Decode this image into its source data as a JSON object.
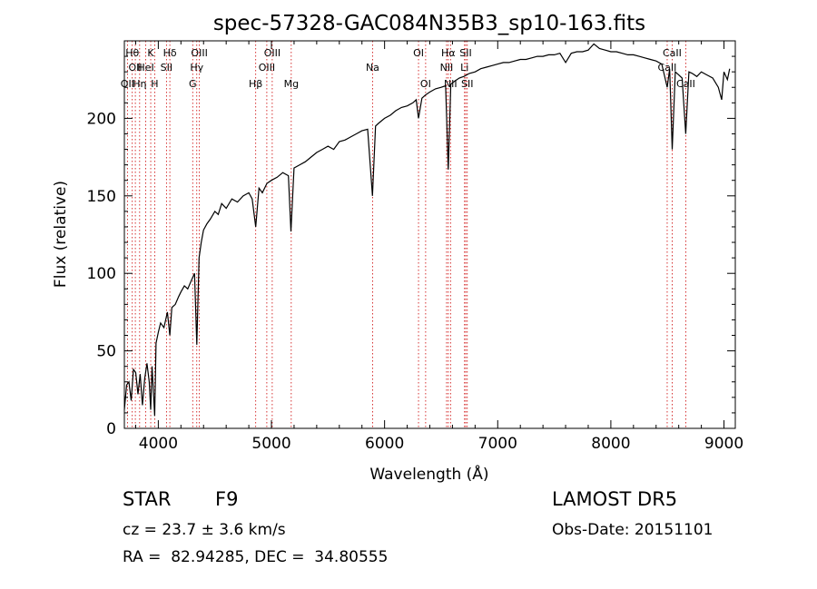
{
  "header": {
    "title": "spec-57328-GAC084N35B3_sp10-163.fits"
  },
  "info": {
    "object_class": "STAR",
    "subclass": "F9",
    "release": "LAMOST DR5",
    "redshift": "cz = 23.7 ± 3.6 km/s",
    "obs_date": "Obs-Date: 20151101",
    "coords": "RA =  82.94285, DEC =  34.80555"
  },
  "colors": {
    "axes": "#000000",
    "spectrum": "#000000",
    "line_marker": "#cc0000"
  },
  "chart_data": {
    "type": "line",
    "title": "spec-57328-GAC084N35B3_sp10-163.fits",
    "xlabel": "Wavelength (Å)",
    "ylabel": "Flux (relative)",
    "xlim": [
      3700,
      9100
    ],
    "ylim": [
      0,
      250
    ],
    "xticks": [
      4000,
      5000,
      6000,
      7000,
      8000,
      9000
    ],
    "yticks": [
      0,
      50,
      100,
      150,
      200
    ],
    "series": [
      {
        "values": [
          [
            3700,
            12
          ],
          [
            3720,
            28
          ],
          [
            3740,
            30
          ],
          [
            3760,
            18
          ],
          [
            3780,
            38
          ],
          [
            3800,
            36
          ],
          [
            3820,
            22
          ],
          [
            3840,
            35
          ],
          [
            3860,
            15
          ],
          [
            3880,
            32
          ],
          [
            3900,
            42
          ],
          [
            3920,
            30
          ],
          [
            3933,
            12
          ],
          [
            3945,
            40
          ],
          [
            3968,
            8
          ],
          [
            3980,
            55
          ],
          [
            4000,
            62
          ],
          [
            4020,
            68
          ],
          [
            4050,
            65
          ],
          [
            4080,
            75
          ],
          [
            4102,
            60
          ],
          [
            4120,
            78
          ],
          [
            4150,
            80
          ],
          [
            4180,
            85
          ],
          [
            4200,
            88
          ],
          [
            4230,
            92
          ],
          [
            4260,
            90
          ],
          [
            4290,
            95
          ],
          [
            4320,
            100
          ],
          [
            4340,
            54
          ],
          [
            4360,
            110
          ],
          [
            4380,
            120
          ],
          [
            4400,
            128
          ],
          [
            4430,
            132
          ],
          [
            4460,
            135
          ],
          [
            4500,
            140
          ],
          [
            4530,
            138
          ],
          [
            4560,
            145
          ],
          [
            4600,
            142
          ],
          [
            4650,
            148
          ],
          [
            4700,
            146
          ],
          [
            4750,
            150
          ],
          [
            4800,
            152
          ],
          [
            4830,
            148
          ],
          [
            4861,
            130
          ],
          [
            4890,
            155
          ],
          [
            4920,
            152
          ],
          [
            4960,
            158
          ],
          [
            5000,
            160
          ],
          [
            5050,
            162
          ],
          [
            5100,
            165
          ],
          [
            5150,
            163
          ],
          [
            5172,
            127
          ],
          [
            5200,
            168
          ],
          [
            5250,
            170
          ],
          [
            5300,
            172
          ],
          [
            5350,
            175
          ],
          [
            5400,
            178
          ],
          [
            5450,
            180
          ],
          [
            5500,
            182
          ],
          [
            5550,
            180
          ],
          [
            5600,
            185
          ],
          [
            5650,
            186
          ],
          [
            5700,
            188
          ],
          [
            5750,
            190
          ],
          [
            5800,
            192
          ],
          [
            5850,
            193
          ],
          [
            5893,
            150
          ],
          [
            5920,
            195
          ],
          [
            5950,
            197
          ],
          [
            6000,
            200
          ],
          [
            6050,
            202
          ],
          [
            6100,
            205
          ],
          [
            6150,
            207
          ],
          [
            6200,
            208
          ],
          [
            6250,
            210
          ],
          [
            6280,
            212
          ],
          [
            6300,
            200
          ],
          [
            6330,
            213
          ],
          [
            6360,
            215
          ],
          [
            6400,
            217
          ],
          [
            6450,
            219
          ],
          [
            6500,
            220
          ],
          [
            6540,
            221
          ],
          [
            6563,
            167
          ],
          [
            6585,
            222
          ],
          [
            6620,
            224
          ],
          [
            6660,
            226
          ],
          [
            6700,
            227
          ],
          [
            6750,
            229
          ],
          [
            6800,
            230
          ],
          [
            6850,
            232
          ],
          [
            6900,
            233
          ],
          [
            6950,
            234
          ],
          [
            7000,
            235
          ],
          [
            7050,
            236
          ],
          [
            7100,
            236
          ],
          [
            7150,
            237
          ],
          [
            7200,
            238
          ],
          [
            7250,
            238
          ],
          [
            7300,
            239
          ],
          [
            7350,
            240
          ],
          [
            7400,
            240
          ],
          [
            7450,
            241
          ],
          [
            7500,
            241
          ],
          [
            7550,
            242
          ],
          [
            7600,
            236
          ],
          [
            7650,
            242
          ],
          [
            7700,
            243
          ],
          [
            7750,
            243
          ],
          [
            7800,
            244
          ],
          [
            7850,
            248
          ],
          [
            7900,
            245
          ],
          [
            7950,
            244
          ],
          [
            8000,
            243
          ],
          [
            8050,
            243
          ],
          [
            8100,
            242
          ],
          [
            8150,
            241
          ],
          [
            8200,
            241
          ],
          [
            8250,
            240
          ],
          [
            8300,
            239
          ],
          [
            8350,
            238
          ],
          [
            8400,
            237
          ],
          [
            8450,
            235
          ],
          [
            8498,
            220
          ],
          [
            8520,
            232
          ],
          [
            8542,
            180
          ],
          [
            8570,
            230
          ],
          [
            8600,
            228
          ],
          [
            8630,
            226
          ],
          [
            8662,
            190
          ],
          [
            8690,
            230
          ],
          [
            8720,
            229
          ],
          [
            8760,
            227
          ],
          [
            8800,
            230
          ],
          [
            8850,
            228
          ],
          [
            8900,
            226
          ],
          [
            8950,
            220
          ],
          [
            8980,
            212
          ],
          [
            9000,
            230
          ],
          [
            9030,
            225
          ],
          [
            9050,
            232
          ]
        ]
      }
    ],
    "line_markers": [
      {
        "wave": 3727,
        "label": "OII",
        "row": 3
      },
      {
        "wave": 3770,
        "label": "Hθ",
        "row": 1
      },
      {
        "wave": 3797,
        "label": "OII",
        "row": 2
      },
      {
        "wave": 3835,
        "label": "Hη",
        "row": 3
      },
      {
        "wave": 3889,
        "label": "HeI",
        "row": 2
      },
      {
        "wave": 3933,
        "label": "K",
        "row": 1
      },
      {
        "wave": 3968,
        "label": "H",
        "row": 3
      },
      {
        "wave": 4072,
        "label": "SII",
        "row": 2
      },
      {
        "wave": 4102,
        "label": "Hδ",
        "row": 1
      },
      {
        "wave": 4304,
        "label": "G",
        "row": 3
      },
      {
        "wave": 4340,
        "label": "Hγ",
        "row": 2
      },
      {
        "wave": 4363,
        "label": "OIII",
        "row": 1
      },
      {
        "wave": 4861,
        "label": "Hβ",
        "row": 3
      },
      {
        "wave": 4959,
        "label": "OIII",
        "row": 2
      },
      {
        "wave": 5007,
        "label": "OIII",
        "row": 1
      },
      {
        "wave": 5175,
        "label": "Mg",
        "row": 3
      },
      {
        "wave": 5894,
        "label": "Na",
        "row": 2
      },
      {
        "wave": 6300,
        "label": "OI",
        "row": 1
      },
      {
        "wave": 6363,
        "label": "OI",
        "row": 3
      },
      {
        "wave": 6548,
        "label": "NII",
        "row": 2
      },
      {
        "wave": 6563,
        "label": "Hα",
        "row": 1
      },
      {
        "wave": 6583,
        "label": "NII",
        "row": 3
      },
      {
        "wave": 6707,
        "label": "Li",
        "row": 2
      },
      {
        "wave": 6717,
        "label": "SII",
        "row": 1
      },
      {
        "wave": 6731,
        "label": "SII",
        "row": 3
      },
      {
        "wave": 8498,
        "label": "CaII",
        "row": 2
      },
      {
        "wave": 8542,
        "label": "CaII",
        "row": 1
      },
      {
        "wave": 8662,
        "label": "CaII",
        "row": 3
      }
    ]
  }
}
